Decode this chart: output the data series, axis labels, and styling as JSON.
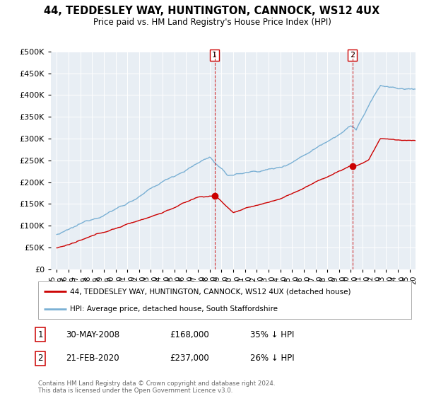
{
  "title": "44, TEDDESLEY WAY, HUNTINGTON, CANNOCK, WS12 4UX",
  "subtitle": "Price paid vs. HM Land Registry's House Price Index (HPI)",
  "legend_line1": "44, TEDDESLEY WAY, HUNTINGTON, CANNOCK, WS12 4UX (detached house)",
  "legend_line2": "HPI: Average price, detached house, South Staffordshire",
  "annotation1_label": "1",
  "annotation1_date": "30-MAY-2008",
  "annotation1_price": "£168,000",
  "annotation1_hpi": "35% ↓ HPI",
  "annotation2_label": "2",
  "annotation2_date": "21-FEB-2020",
  "annotation2_price": "£237,000",
  "annotation2_hpi": "26% ↓ HPI",
  "footnote": "Contains HM Land Registry data © Crown copyright and database right 2024.\nThis data is licensed under the Open Government Licence v3.0.",
  "sale1_x": 2008.42,
  "sale1_y": 168000,
  "sale2_x": 2020.13,
  "sale2_y": 237000,
  "vline1_x": 2008.42,
  "vline2_x": 2020.13,
  "red_color": "#cc0000",
  "blue_color": "#7ab0d4",
  "vline_color": "#cc0000",
  "ylim": [
    0,
    500000
  ],
  "xlim": [
    1994.5,
    2025.5
  ],
  "yticks": [
    0,
    50000,
    100000,
    150000,
    200000,
    250000,
    300000,
    350000,
    400000,
    450000,
    500000
  ],
  "background_color": "#e8eef4"
}
